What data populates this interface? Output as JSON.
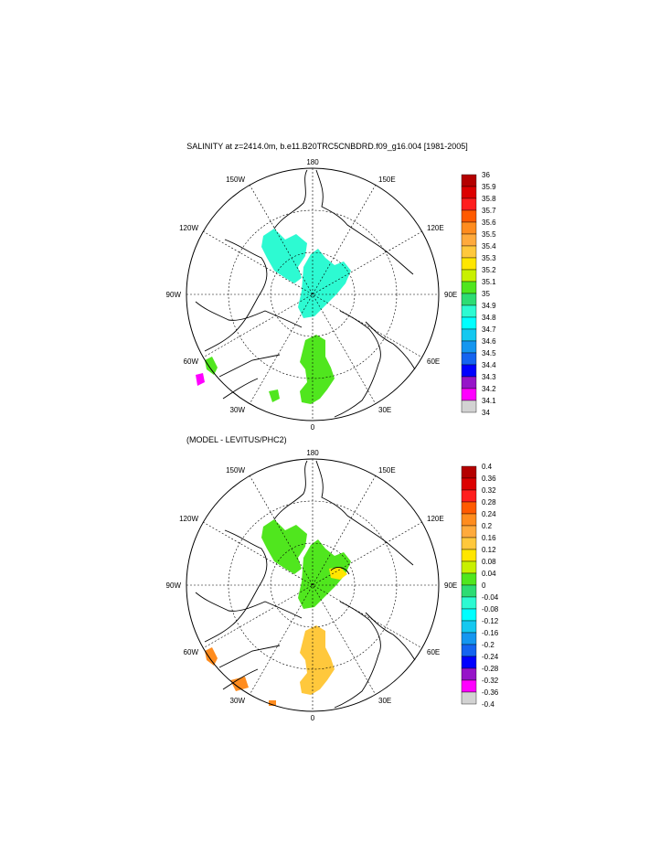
{
  "panels": [
    {
      "title": "SALINITY at z=2414.0m, b.e11.B20TRC5CNBDRD.f09_g16.004 [1981-2005]",
      "lon_labels": {
        "top": "180",
        "bottom": "0",
        "left": "90W",
        "right": "90E",
        "ul": "150W",
        "ur": "150E",
        "ul2": "120W",
        "ur2": "120E",
        "ll": "60W",
        "lr": "60E",
        "ll2": "30W",
        "lr2": "30E"
      },
      "colorbar": {
        "labels": [
          "36",
          "35.9",
          "35.8",
          "35.7",
          "35.6",
          "35.5",
          "35.4",
          "35.3",
          "35.2",
          "35.1",
          "35",
          "34.9",
          "34.8",
          "34.7",
          "34.6",
          "34.5",
          "34.4",
          "34.3",
          "34.2",
          "34.1",
          "34"
        ],
        "colors": [
          "#b40000",
          "#dc0000",
          "#ff1e1e",
          "#ff5a00",
          "#ff8c1e",
          "#ffaa3c",
          "#ffc83c",
          "#ffe600",
          "#c8f000",
          "#50e61e",
          "#2ddc73",
          "#2dfad2",
          "#00ffff",
          "#14c8f0",
          "#1496f0",
          "#1464f0",
          "#0000ff",
          "#9614c8",
          "#ff00ff",
          "#d2d2d2"
        ]
      }
    },
    {
      "title": "(MODEL - LEVITUS/PHC2)",
      "lon_labels": {
        "top": "180",
        "bottom": "0",
        "left": "90W",
        "right": "90E",
        "ul": "150W",
        "ur": "150E",
        "ul2": "120W",
        "ur2": "120E",
        "ll": "60W",
        "lr": "60E",
        "ll2": "30W",
        "lr2": "30E"
      },
      "colorbar": {
        "labels": [
          "0.4",
          "0.36",
          "0.32",
          "0.28",
          "0.24",
          "0.2",
          "0.16",
          "0.12",
          "0.08",
          "0.04",
          "0",
          "-0.04",
          "-0.08",
          "-0.12",
          "-0.16",
          "-0.2",
          "-0.24",
          "-0.28",
          "-0.32",
          "-0.36",
          "-0.4"
        ],
        "colors": [
          "#b40000",
          "#dc0000",
          "#ff1e1e",
          "#ff5a00",
          "#ff8c1e",
          "#ffaa3c",
          "#ffc83c",
          "#ffe600",
          "#c8f000",
          "#50e61e",
          "#2ddc73",
          "#2dfad2",
          "#00ffff",
          "#14c8f0",
          "#1496f0",
          "#1464f0",
          "#0000ff",
          "#9614c8",
          "#ff00ff",
          "#d2d2d2"
        ]
      }
    }
  ]
}
